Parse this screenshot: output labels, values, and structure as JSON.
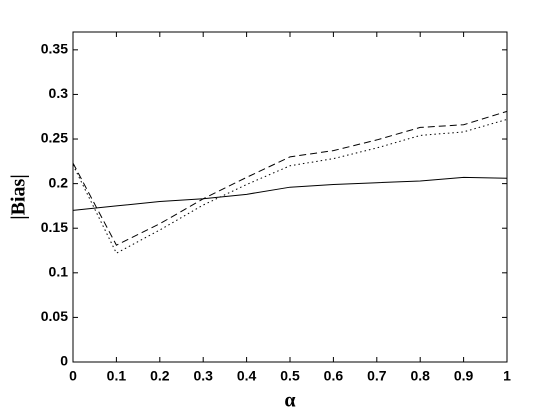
{
  "chart_data": {
    "type": "line",
    "xlabel": "α",
    "ylabel": "|Bias|",
    "x": [
      0,
      0.1,
      0.2,
      0.3,
      0.4,
      0.5,
      0.6,
      0.7,
      0.8,
      0.9,
      1
    ],
    "series": [
      {
        "color": "#000000",
        "style": "solid",
        "values": [
          0.17,
          0.175,
          0.18,
          0.183,
          0.188,
          0.196,
          0.199,
          0.201,
          0.203,
          0.207,
          0.206
        ]
      },
      {
        "color": "#000000",
        "style": "dashed",
        "values": [
          0.223,
          0.131,
          0.155,
          0.183,
          0.207,
          0.23,
          0.237,
          0.249,
          0.263,
          0.266,
          0.281
        ]
      },
      {
        "color": "#000000",
        "style": "dotted",
        "values": [
          0.221,
          0.122,
          0.148,
          0.176,
          0.199,
          0.22,
          0.228,
          0.24,
          0.254,
          0.258,
          0.272
        ]
      }
    ],
    "xlim": [
      0,
      1
    ],
    "ylim": [
      0,
      0.37
    ],
    "xticks": [
      0,
      0.1,
      0.2,
      0.3,
      0.4,
      0.5,
      0.6,
      0.7,
      0.8,
      0.9,
      1
    ],
    "yticks": [
      0,
      0.05,
      0.1,
      0.15,
      0.2,
      0.25,
      0.3,
      0.35
    ],
    "grid": false
  }
}
